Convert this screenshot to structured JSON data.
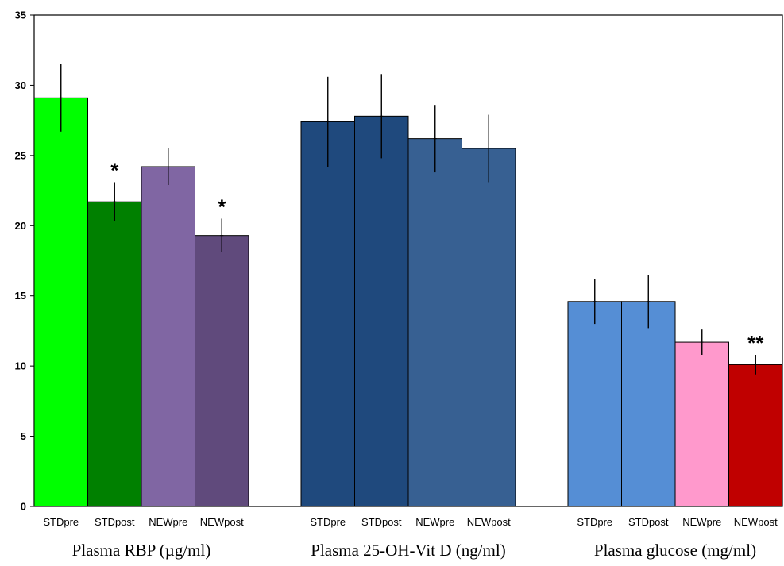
{
  "chart_data": {
    "type": "bar",
    "ylim": [
      0,
      35
    ],
    "yticks": [
      0,
      5,
      10,
      15,
      20,
      25,
      30,
      35
    ],
    "grid": false,
    "legend": "none",
    "groups": [
      {
        "label": "Plasma RBP (µg/ml)",
        "bars": [
          {
            "category": "STDpre",
            "value": 29.1,
            "error": 2.4,
            "color": "#00ff00",
            "annotation": ""
          },
          {
            "category": "STDpost",
            "value": 21.7,
            "error": 1.4,
            "color": "#008000",
            "annotation": "*"
          },
          {
            "category": "NEWpre",
            "value": 24.2,
            "error": 1.3,
            "color": "#8066a3",
            "annotation": ""
          },
          {
            "category": "NEWpost",
            "value": 19.3,
            "error": 1.2,
            "color": "#604a7c",
            "annotation": "*"
          }
        ]
      },
      {
        "label": "Plasma 25-OH-Vit D (ng/ml)",
        "bars": [
          {
            "category": "STDpre",
            "value": 27.4,
            "error": 3.2,
            "color": "#1f497d",
            "annotation": ""
          },
          {
            "category": "STDpost",
            "value": 27.8,
            "error": 3.0,
            "color": "#1f497d",
            "annotation": ""
          },
          {
            "category": "NEWpre",
            "value": 26.2,
            "error": 2.4,
            "color": "#376092",
            "annotation": ""
          },
          {
            "category": "NEWpost",
            "value": 25.5,
            "error": 2.4,
            "color": "#376092",
            "annotation": ""
          }
        ]
      },
      {
        "label": "Plasma glucose (mg/ml)",
        "bars": [
          {
            "category": "STDpre",
            "value": 14.6,
            "error": 1.6,
            "color": "#558ed5",
            "annotation": ""
          },
          {
            "category": "STDpost",
            "value": 14.6,
            "error": 1.9,
            "color": "#558ed5",
            "annotation": ""
          },
          {
            "category": "NEWpre",
            "value": 11.7,
            "error": 0.9,
            "color": "#ff99cc",
            "annotation": ""
          },
          {
            "category": "NEWpost",
            "value": 10.1,
            "error": 0.7,
            "color": "#c00000",
            "annotation": "**"
          }
        ]
      }
    ]
  }
}
